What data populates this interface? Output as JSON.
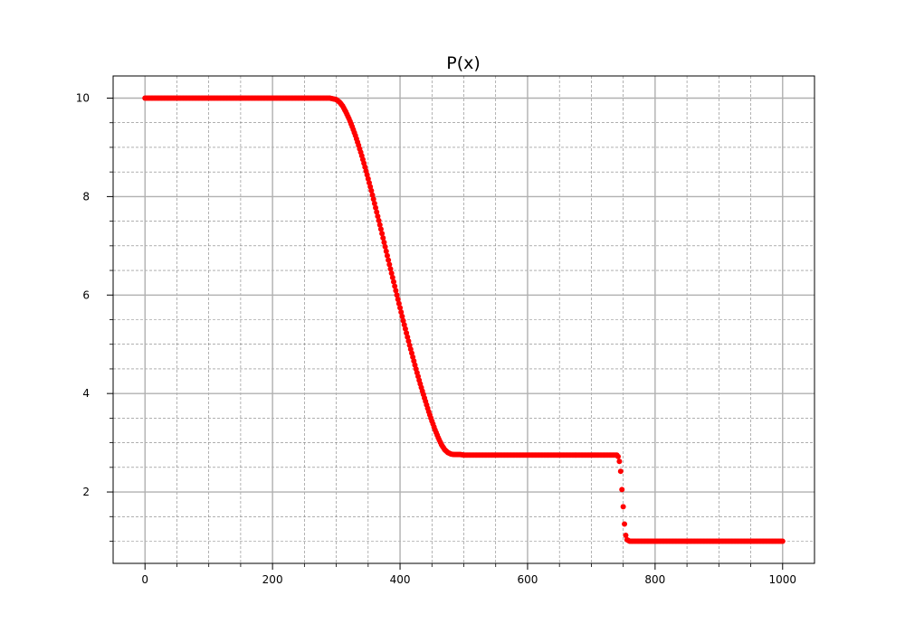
{
  "chart_data": {
    "type": "scatter",
    "title": "P(x)",
    "xlabel": "",
    "ylabel": "",
    "xlim": [
      -50,
      1050
    ],
    "ylim": [
      0.55,
      10.45
    ],
    "x_ticks": [
      0,
      200,
      400,
      600,
      800,
      1000
    ],
    "x_minor_ticks": [
      50,
      100,
      150,
      250,
      300,
      350,
      450,
      500,
      550,
      650,
      700,
      750,
      850,
      900,
      950
    ],
    "y_ticks": [
      2,
      4,
      6,
      8,
      10
    ],
    "y_minor_ticks": [
      1,
      1.5,
      2.5,
      3,
      3.5,
      4.5,
      5,
      5.5,
      6.5,
      7,
      7.5,
      8.5,
      9,
      9.5
    ],
    "grid": true,
    "marker_color": "#ff0000",
    "series": [
      {
        "x": [
          0,
          50,
          100,
          150,
          200,
          250,
          290,
          300,
          305,
          310,
          315,
          320,
          325,
          330,
          335,
          340,
          345,
          350,
          355,
          360,
          365,
          370,
          375,
          380,
          385,
          390,
          395,
          400,
          405,
          410,
          415,
          420,
          425,
          430,
          435,
          440,
          445,
          450,
          455,
          460,
          465,
          470,
          475,
          480,
          485,
          490,
          495,
          500,
          550,
          600,
          650,
          700,
          740,
          742,
          744,
          746,
          748,
          750,
          752,
          754,
          756,
          760,
          800,
          850,
          900,
          950,
          1000
        ],
        "y": [
          10,
          10,
          10,
          10,
          10,
          10,
          10,
          9.97,
          9.92,
          9.84,
          9.72,
          9.58,
          9.42,
          9.24,
          9.04,
          8.83,
          8.6,
          8.36,
          8.12,
          7.86,
          7.6,
          7.34,
          7.07,
          6.8,
          6.53,
          6.27,
          6.0,
          5.74,
          5.48,
          5.23,
          4.98,
          4.74,
          4.5,
          4.27,
          4.05,
          3.84,
          3.63,
          3.44,
          3.26,
          3.1,
          2.96,
          2.86,
          2.8,
          2.77,
          2.76,
          2.76,
          2.76,
          2.75,
          2.75,
          2.75,
          2.75,
          2.75,
          2.75,
          2.72,
          2.62,
          2.42,
          2.05,
          1.7,
          1.35,
          1.12,
          1.03,
          1.0,
          1.0,
          1.0,
          1.0,
          1.0,
          1.0
        ]
      }
    ]
  }
}
